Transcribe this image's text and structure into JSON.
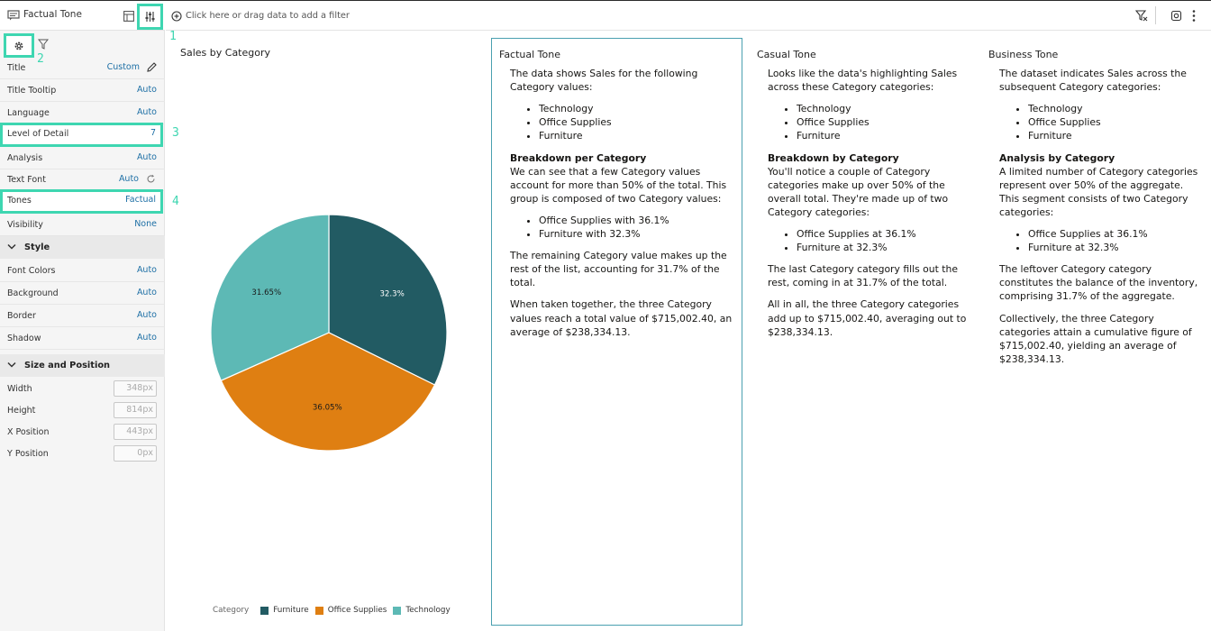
{
  "left_panel": {
    "title": "Factual Tone",
    "properties": [
      {
        "label": "Title",
        "value": "Custom"
      },
      {
        "label": "Title Tooltip",
        "value": "Auto"
      },
      {
        "label": "Language",
        "value": "Auto"
      },
      {
        "label": "Level of Detail",
        "value": "7"
      },
      {
        "label": "Analysis",
        "value": "Auto"
      },
      {
        "label": "Text Font",
        "value": "Auto"
      },
      {
        "label": "Tones",
        "value": "Factual"
      },
      {
        "label": "Visibility",
        "value": "None"
      }
    ],
    "style_section": {
      "label": "Style",
      "properties": [
        {
          "label": "Font Colors",
          "value": "Auto"
        },
        {
          "label": "Background",
          "value": "Auto"
        },
        {
          "label": "Border",
          "value": "Auto"
        },
        {
          "label": "Shadow",
          "value": "Auto"
        }
      ]
    },
    "size_section": {
      "label": "Size and Position",
      "properties": [
        {
          "label": "Width",
          "value": "348px"
        },
        {
          "label": "Height",
          "value": "814px"
        },
        {
          "label": "X Position",
          "value": "443px"
        },
        {
          "label": "Y Position",
          "value": "0px"
        }
      ]
    }
  },
  "callouts": [
    "1",
    "2",
    "3",
    "4"
  ],
  "filter_bar": {
    "placeholder": "Click here or drag data to add a filter"
  },
  "chart": {
    "title": "Sales by Category",
    "legend_title": "Category"
  },
  "chart_data": {
    "type": "pie",
    "title": "Sales by Category",
    "categories": [
      "Furniture",
      "Office Supplies",
      "Technology"
    ],
    "values": [
      32.3,
      36.05,
      31.65
    ],
    "labels": [
      "32.3%",
      "36.05%",
      "31.65%"
    ],
    "colors": [
      "#225b63",
      "#df7f12",
      "#5db9b5"
    ],
    "legend_title": "Category",
    "legend_position": "bottom"
  },
  "tones": {
    "factual": {
      "title": "Factual Tone",
      "intro": "The data shows Sales for the following Category values:",
      "list1": [
        "Technology",
        "Office Supplies",
        "Furniture"
      ],
      "heading": "Breakdown per Category",
      "para": "We can see that a few Category values account for more than 50% of the total. This group is composed of two Category values:",
      "list2": [
        "Office Supplies with 36.1%",
        "Furniture with 32.3%"
      ],
      "remaining": "The remaining Category value makes up the rest of the list, accounting for 31.7% of the total.",
      "summary": "When taken together, the three Category values reach a total value of $715,002.40, an average of $238,334.13."
    },
    "casual": {
      "title": "Casual Tone",
      "intro": "Looks like the data's highlighting Sales across these Category categories:",
      "list1": [
        "Technology",
        "Office Supplies",
        "Furniture"
      ],
      "heading": "Breakdown by Category",
      "para": "You'll notice a couple of Category categories make up over 50% of the overall total. They're made up of two Category categories:",
      "list2": [
        "Office Supplies at 36.1%",
        "Furniture at 32.3%"
      ],
      "remaining": "The last Category category fills out the rest, coming in at 31.7% of the total.",
      "summary": "All in all, the three Category categories add up to $715,002.40, averaging out to $238,334.13."
    },
    "business": {
      "title": "Business Tone",
      "intro": "The dataset indicates Sales across the subsequent Category categories:",
      "list1": [
        "Technology",
        "Office Supplies",
        "Furniture"
      ],
      "heading": "Analysis by Category",
      "para": "A limited number of Category categories represent over 50% of the aggregate. This segment consists of two Category categories:",
      "list2": [
        "Office Supplies at 36.1%",
        "Furniture at 32.3%"
      ],
      "remaining": "The leftover Category category constitutes the balance of the inventory, comprising 31.7% of the aggregate.",
      "summary": "Collectively, the three Category categories attain a cumulative figure of $715,002.40, yielding an average of $238,334.13."
    }
  }
}
